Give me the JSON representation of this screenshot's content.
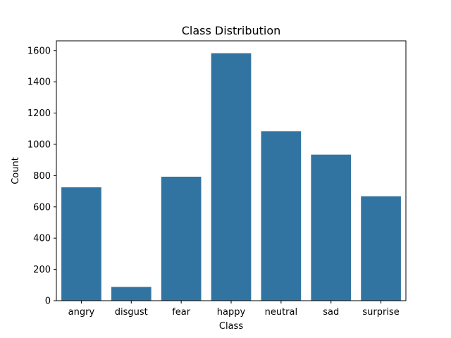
{
  "chart_data": {
    "type": "bar",
    "title": "Class Distribution",
    "xlabel": "Class",
    "ylabel": "Count",
    "categories": [
      "angry",
      "disgust",
      "fear",
      "happy",
      "neutral",
      "sad",
      "surprise"
    ],
    "values": [
      725,
      88,
      793,
      1583,
      1084,
      934,
      668
    ],
    "ylim": [
      0,
      1662
    ],
    "yticks": [
      0,
      200,
      400,
      600,
      800,
      1000,
      1200,
      1400,
      1600
    ],
    "bar_color": "#3274a1",
    "grid": false,
    "legend": "none"
  }
}
